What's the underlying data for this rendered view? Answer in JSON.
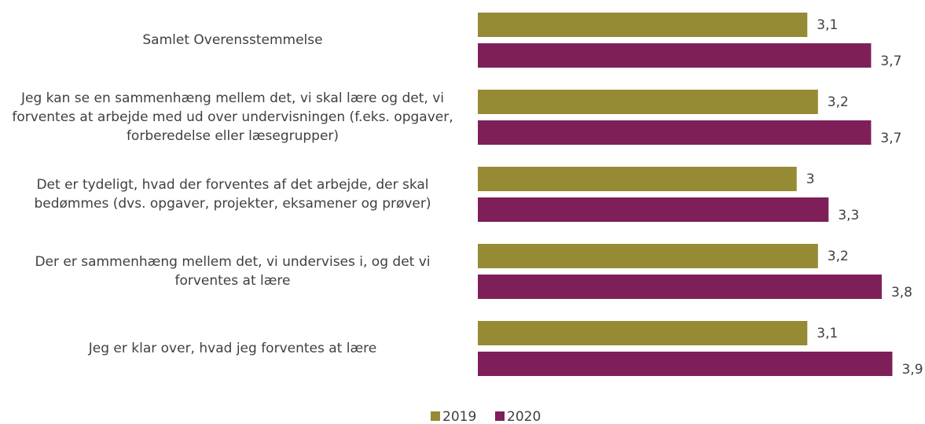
{
  "chart_data": {
    "type": "hbar",
    "categories": [
      "Samlet Overensstemmelse",
      "Jeg kan se en sammenhæng mellem det, vi skal lære og det, vi forventes at arbejde med ud over undervisningen (f.eks. opgaver, forberedelse eller læsegrupper)",
      "Det er tydeligt, hvad der forventes af det arbejde, der skal bedømmes (dvs. opgaver, projekter, eksamener og prøver)",
      "Der er sammenhæng mellem det, vi undervises i, og det vi forventes at lære",
      "Jeg er klar over, hvad jeg forventes at lære"
    ],
    "series": [
      {
        "name": "2019",
        "color": "#978a35",
        "values": [
          3.1,
          3.2,
          3,
          3.2,
          3.1
        ],
        "value_labels": [
          "3,1",
          "3,2",
          "3",
          "3,2",
          "3,1"
        ]
      },
      {
        "name": "2020",
        "color": "#7f1f5a",
        "values": [
          3.7,
          3.7,
          3.3,
          3.8,
          3.9
        ],
        "value_labels": [
          "3,7",
          "3,7",
          "3,3",
          "3,8",
          "3,9"
        ]
      }
    ],
    "xlim": [
      0,
      4
    ],
    "legend": "bottom"
  }
}
